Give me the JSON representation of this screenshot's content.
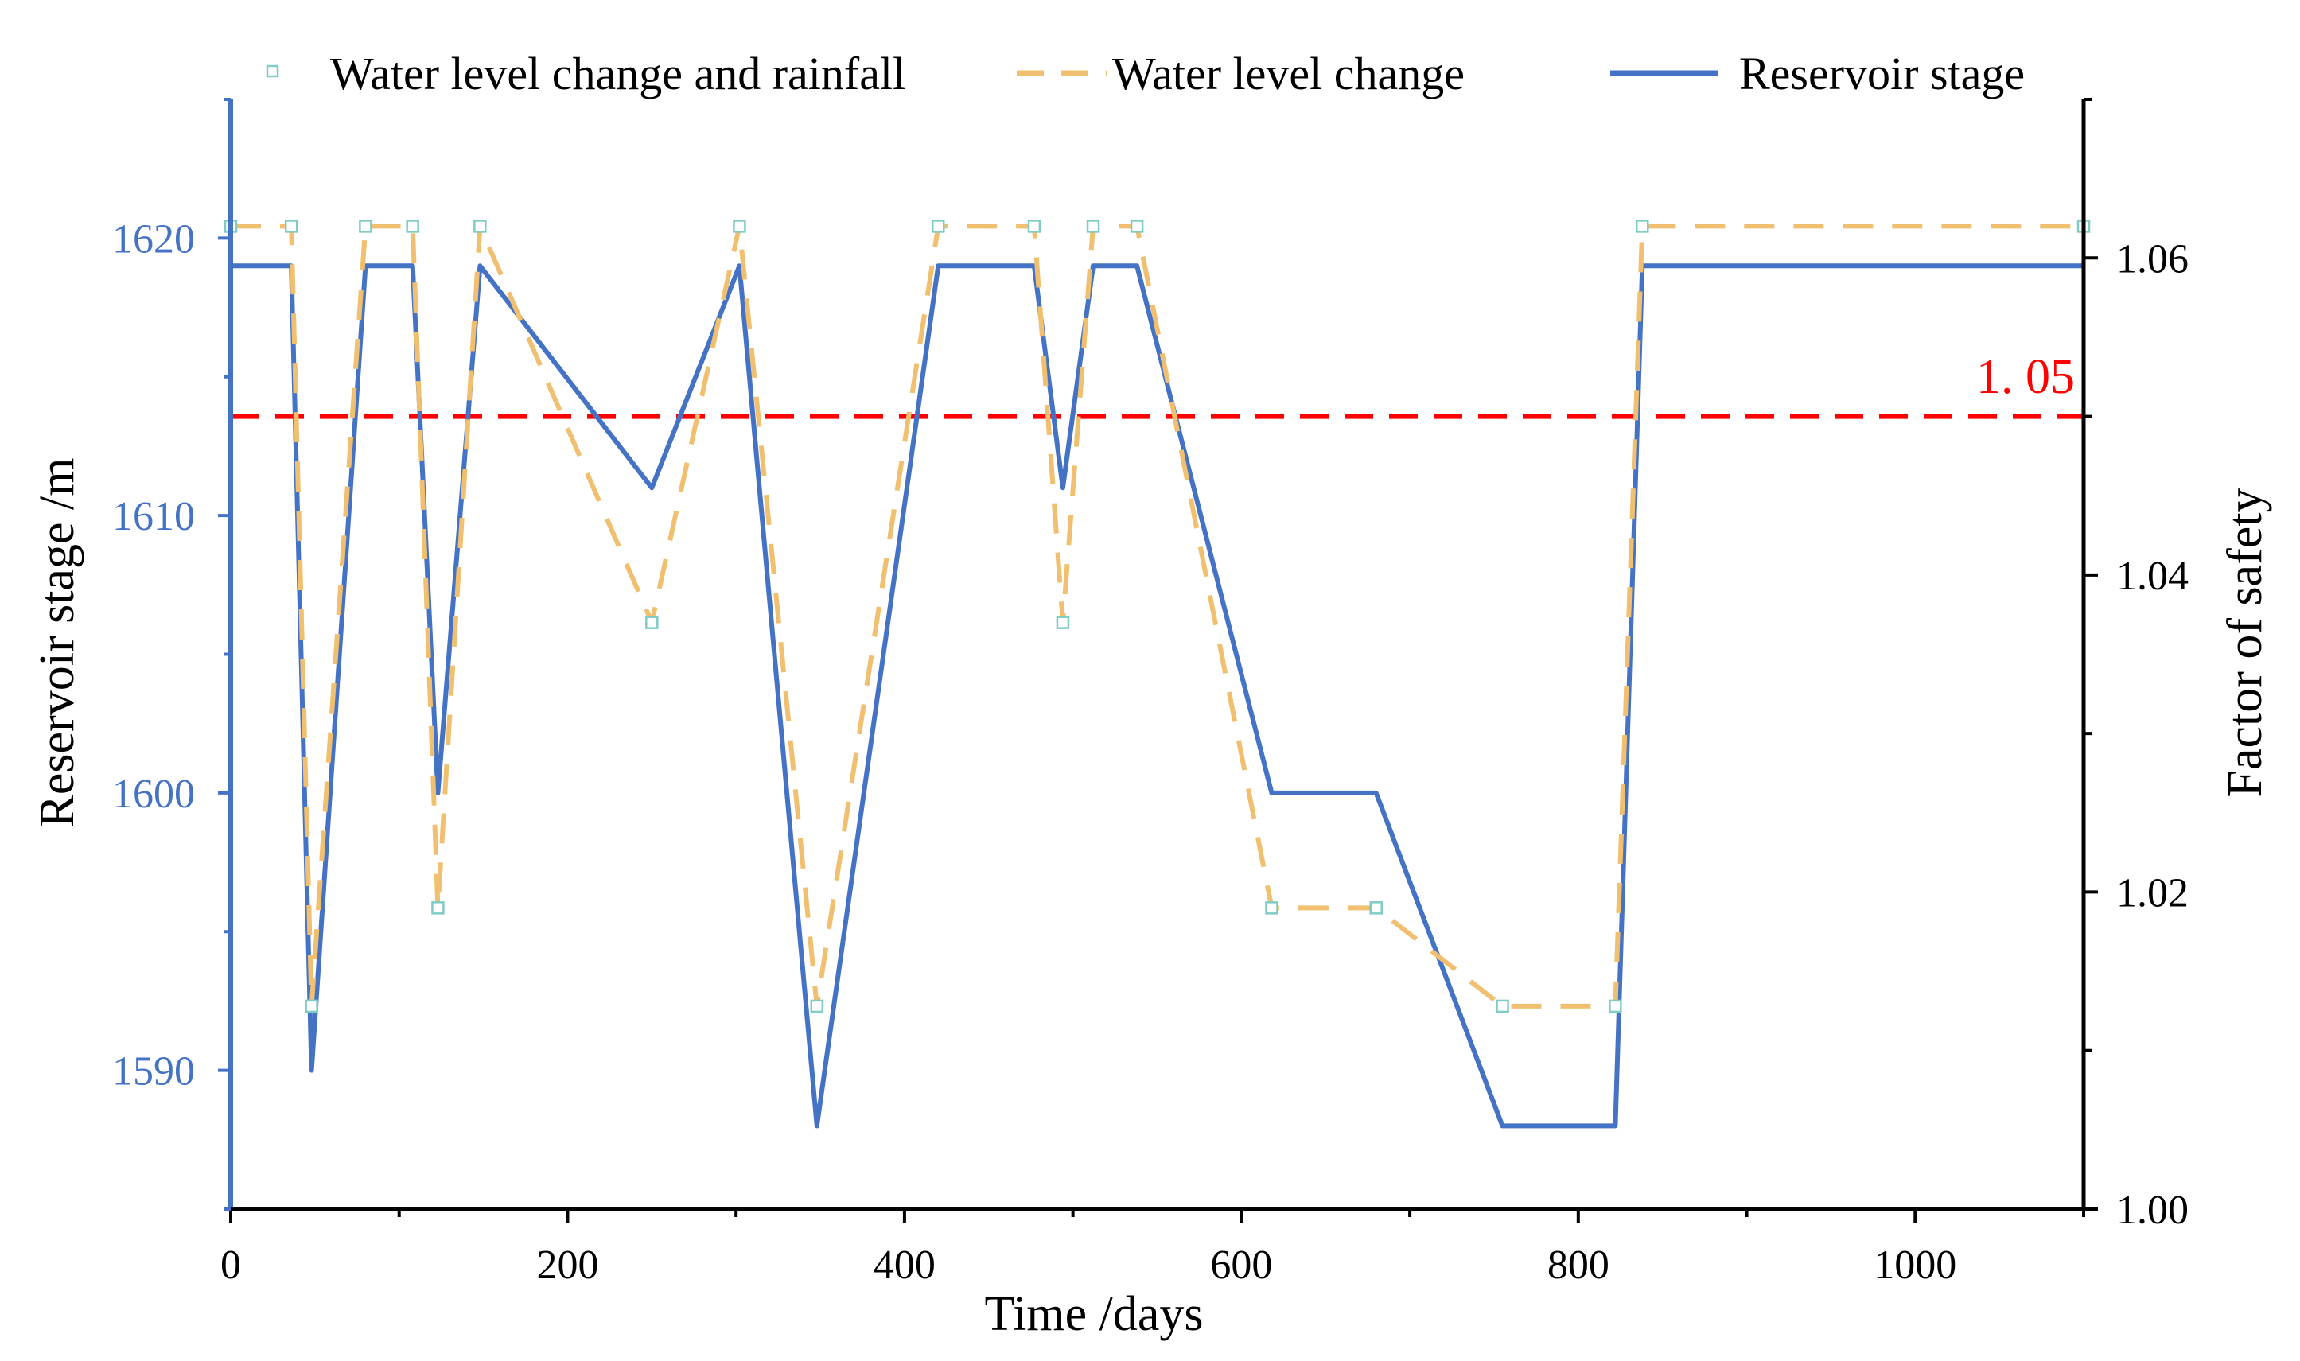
{
  "chart_data": {
    "type": "line",
    "xlabel": "Time /days",
    "ylabel_left": "Reservoir stage /m",
    "ylabel_right": "Factor of safety",
    "xlim": [
      0,
      1100
    ],
    "ylim_left": [
      1585,
      1625
    ],
    "ylim_right": [
      1.0,
      1.07
    ],
    "x_ticks": [
      0,
      200,
      400,
      600,
      800,
      1000
    ],
    "x_tick_labels": [
      "0",
      "200",
      "400",
      "600",
      "800",
      "1000"
    ],
    "y_left_ticks": [
      1590,
      1600,
      1610,
      1620
    ],
    "y_left_tick_labels": [
      "1590",
      "1600",
      "1610",
      "1620"
    ],
    "y_right_ticks": [
      1.0,
      1.02,
      1.04,
      1.06
    ],
    "y_right_tick_labels": [
      "1.00",
      "1.02",
      "1.04",
      "1.06"
    ],
    "legend": [
      "Water level change and rainfall",
      "Water level change",
      "Reservoir stage"
    ],
    "legend_position": "top",
    "reference_line": {
      "value": 1.05,
      "label": "1. 05",
      "axis": "right",
      "color": "#ff0000"
    },
    "series": [
      {
        "name": "Reservoir stage",
        "axis": "left",
        "color": "#4472c4",
        "style": "solid",
        "x": [
          0,
          36,
          48,
          80,
          108,
          123,
          148,
          250,
          302,
          348,
          420,
          477,
          494,
          512,
          538,
          618,
          680,
          755,
          822,
          838,
          1100
        ],
        "y": [
          1619,
          1619,
          1590,
          1619,
          1619,
          1600,
          1619,
          1611,
          1619,
          1588,
          1619,
          1619,
          1611,
          1619,
          1619,
          1600,
          1600,
          1588,
          1588,
          1619,
          1619
        ]
      },
      {
        "name": "Water level change",
        "axis": "right",
        "color": "#f0c070",
        "style": "dashed",
        "x": [
          0,
          36,
          48,
          80,
          108,
          123,
          148,
          250,
          302,
          348,
          420,
          477,
          494,
          512,
          538,
          618,
          680,
          755,
          822,
          838,
          1100
        ],
        "y": [
          1.062,
          1.062,
          1.0128,
          1.062,
          1.062,
          1.019,
          1.062,
          1.037,
          1.062,
          1.0128,
          1.062,
          1.062,
          1.037,
          1.062,
          1.062,
          1.019,
          1.019,
          1.0128,
          1.0128,
          1.062,
          1.062
        ]
      },
      {
        "name": "Water level change and rainfall",
        "axis": "right",
        "color": "#80cbc4",
        "style": "markers",
        "x": [
          0,
          36,
          48,
          80,
          108,
          123,
          148,
          250,
          302,
          348,
          420,
          477,
          494,
          512,
          538,
          618,
          680,
          755,
          822,
          838,
          1100
        ],
        "y": [
          1.062,
          1.062,
          1.0128,
          1.062,
          1.062,
          1.019,
          1.062,
          1.037,
          1.062,
          1.0128,
          1.062,
          1.062,
          1.037,
          1.062,
          1.062,
          1.019,
          1.019,
          1.0128,
          1.0128,
          1.062,
          1.062
        ]
      }
    ]
  }
}
